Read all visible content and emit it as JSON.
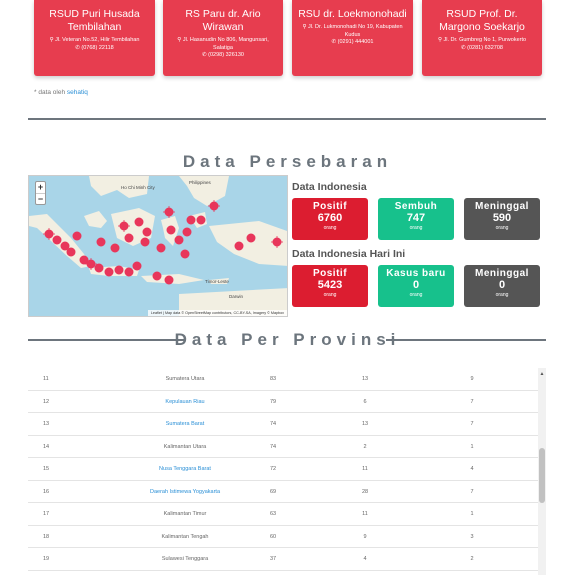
{
  "hospitals": [
    {
      "name": "RSUD Puri Husada Tembilahan",
      "address": "Jl. Veteran No.52, Hilir Tembilahan",
      "phone": "(0768) 22118"
    },
    {
      "name": "RS Paru dr. Ario Wirawan",
      "address": "Jl. Hasanudin No 806, Mangunsari, Salatiga",
      "phone": "(0298) 326130"
    },
    {
      "name": "RSU dr. Loekmonohadi",
      "address": "Jl. Dr. Lukmonohadi No 19, Kabupaten Kudus",
      "phone": "(0291) 444001"
    },
    {
      "name": "RSUD Prof. Dr. Margono Soekarjo",
      "address": "Jl. Dr. Gumbreg No 1, Purwokerto",
      "phone": "(0281) 632708"
    }
  ],
  "source": {
    "prefix": "* data oleh",
    "link": "sehatiq"
  },
  "persebaran": {
    "title": "Data Persebaran"
  },
  "map": {
    "zoom_in": "+",
    "zoom_out": "−",
    "labels": {
      "hcmc": "Ho Chi Minh City",
      "philippines": "Philippines",
      "timor": "Timor-Leste",
      "darwin": "Darwin"
    },
    "attribution": "Leaflet | Map data © OpenStreetMap contributors, CC-BY-SA, Imagery © Mapbox"
  },
  "indonesia": {
    "heading": "Data Indonesia",
    "positif": {
      "label": "Positif",
      "value": "6760",
      "unit": "orang"
    },
    "sembuh": {
      "label": "Sembuh",
      "value": "747",
      "unit": "orang"
    },
    "meninggal": {
      "label": "Meninggal",
      "value": "590",
      "unit": "orang"
    }
  },
  "today": {
    "heading": "Data Indonesia Hari Ini",
    "positif": {
      "label": "Positif",
      "value": "5423",
      "unit": "orang"
    },
    "kasus_baru": {
      "label": "Kasus baru",
      "value": "0",
      "unit": "orang"
    },
    "meninggal": {
      "label": "Meninggal",
      "value": "0",
      "unit": "orang"
    }
  },
  "provinsi": {
    "title": "Data Per Provinsi"
  },
  "table_rows": [
    {
      "no": "11",
      "prov": "Sumatera Utara",
      "pos": "83",
      "sem": "13",
      "men": "9",
      "link": false
    },
    {
      "no": "12",
      "prov": "Kepulauan Riau",
      "pos": "79",
      "sem": "6",
      "men": "7",
      "link": true
    },
    {
      "no": "13",
      "prov": "Sumatera Barat",
      "pos": "74",
      "sem": "13",
      "men": "7",
      "link": true
    },
    {
      "no": "14",
      "prov": "Kalimantan Utara",
      "pos": "74",
      "sem": "2",
      "men": "1",
      "link": false
    },
    {
      "no": "15",
      "prov": "Nusa Tenggara Barat",
      "pos": "72",
      "sem": "11",
      "men": "4",
      "link": true
    },
    {
      "no": "16",
      "prov": "Daerah Istimewa Yogyakarta",
      "pos": "69",
      "sem": "28",
      "men": "7",
      "link": true
    },
    {
      "no": "17",
      "prov": "Kalimantan Timur",
      "pos": "63",
      "sem": "11",
      "men": "1",
      "link": false
    },
    {
      "no": "18",
      "prov": "Kalimantan Tengah",
      "pos": "60",
      "sem": "9",
      "men": "3",
      "link": false
    },
    {
      "no": "19",
      "prov": "Sulawesi Tenggara",
      "pos": "37",
      "sem": "4",
      "men": "2",
      "link": false
    }
  ],
  "colors": {
    "card_red": "#e73d4f",
    "positif_red": "#dc1d30",
    "green": "#17c18c",
    "gray": "#555555",
    "link_blue": "#2a8fd6"
  }
}
